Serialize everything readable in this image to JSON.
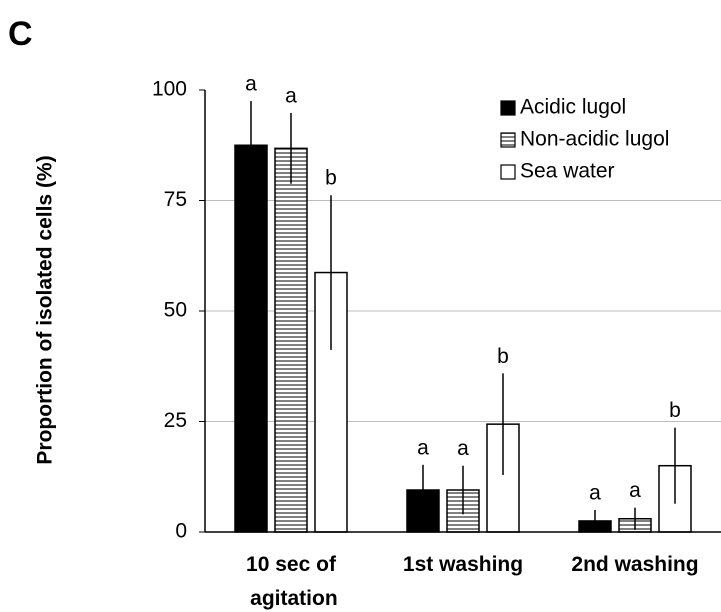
{
  "panel_label": "C",
  "chart_data": {
    "type": "bar",
    "y_label": "Proportion of isolated cells (%)",
    "categories": [
      "10 sec of agitation",
      "1st washing",
      "2nd washing"
    ],
    "series": [
      {
        "name": "Acidic lugol",
        "color": "#000000",
        "values": [
          87.5,
          9.5,
          2.5
        ],
        "errors": [
          10,
          5.7,
          2.5
        ],
        "letters": [
          "a",
          "a",
          "a"
        ]
      },
      {
        "name": "Non-acidic lugol",
        "color": "#808080",
        "pattern": "horizontal-lines",
        "values": [
          86.8,
          9.5,
          3
        ],
        "errors": [
          8,
          5.5,
          2.5
        ],
        "letters": [
          "a",
          "a",
          "a"
        ]
      },
      {
        "name": "Sea water",
        "color": "#ffffff",
        "values": [
          58.7,
          24.4,
          15
        ],
        "errors": [
          17.5,
          11.5,
          8.6
        ],
        "letters": [
          "b",
          "b",
          "b"
        ]
      }
    ],
    "ylim": [
      0,
      100
    ],
    "yticks": [
      0,
      25,
      50,
      75,
      100
    ],
    "grid": true,
    "legend": "top-right"
  }
}
